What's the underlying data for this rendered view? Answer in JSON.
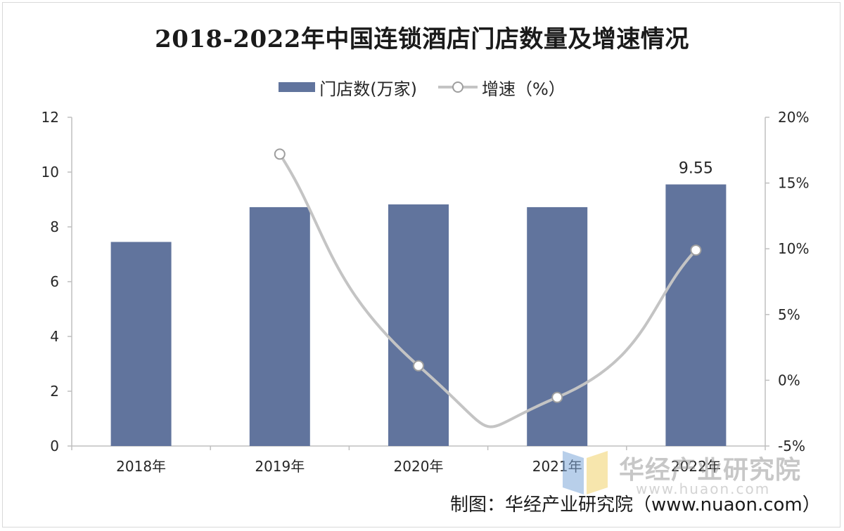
{
  "title": "2018-2022年中国连锁酒店门店数量及增速情况",
  "legend": {
    "bar_label": "门店数(万家)",
    "line_label": "增速（%）"
  },
  "source": "制图：华经产业研究院（www.nuaon.com）",
  "watermark": {
    "name": "华经产业研究院",
    "url": "www.huaon.com"
  },
  "colors": {
    "bar": "#61749d",
    "line": "#c4c4c4",
    "axis": "#bfbfbf"
  },
  "chart_data": {
    "type": "bar",
    "categories": [
      "2018年",
      "2019年",
      "2020年",
      "2021年",
      "2022年"
    ],
    "series": [
      {
        "name": "门店数(万家)",
        "type": "bar",
        "axis": "left",
        "values": [
          7.45,
          8.72,
          8.82,
          8.72,
          9.55
        ]
      },
      {
        "name": "增速（%）",
        "type": "line",
        "axis": "right",
        "smooth": true,
        "values": [
          null,
          17.2,
          1.1,
          -1.3,
          9.9
        ]
      }
    ],
    "data_labels": [
      {
        "series": 0,
        "index": 4,
        "text": "9.55"
      }
    ],
    "y_left": {
      "min": 0,
      "max": 12,
      "ticks": [
        0,
        2,
        4,
        6,
        8,
        10,
        12
      ]
    },
    "y_right": {
      "min": -5,
      "max": 20,
      "ticks": [
        "-5%",
        "0%",
        "5%",
        "10%",
        "15%",
        "20%"
      ],
      "tick_values": [
        -5,
        0,
        5,
        10,
        15,
        20
      ]
    },
    "grid": false,
    "legend_position": "top-center"
  }
}
